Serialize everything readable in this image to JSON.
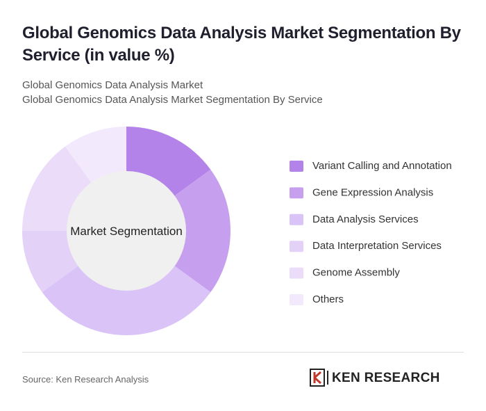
{
  "chart_data": {
    "type": "donut",
    "title": "Global Genomics Data Analysis Market Segmentation By Service (in value %)",
    "subtitle": [
      "Global Genomics Data Analysis Market",
      "Global Genomics Data Analysis Market Segmentation By Service"
    ],
    "center_label": "Market Segmentation",
    "categories": [
      "Variant Calling and Annotation",
      "Gene Expression Analysis",
      "Data Analysis Services",
      "Data Interpretation Services",
      "Genome Assembly",
      "Others"
    ],
    "values": [
      15,
      20,
      30,
      10,
      15,
      10
    ],
    "colors": [
      "#b483ea",
      "#c6a0ef",
      "#dac3f6",
      "#e3d1f8",
      "#ebddf9",
      "#f2e9fc"
    ],
    "source": "Source: Ken Research Analysis",
    "brand": "KEN RESEARCH"
  }
}
